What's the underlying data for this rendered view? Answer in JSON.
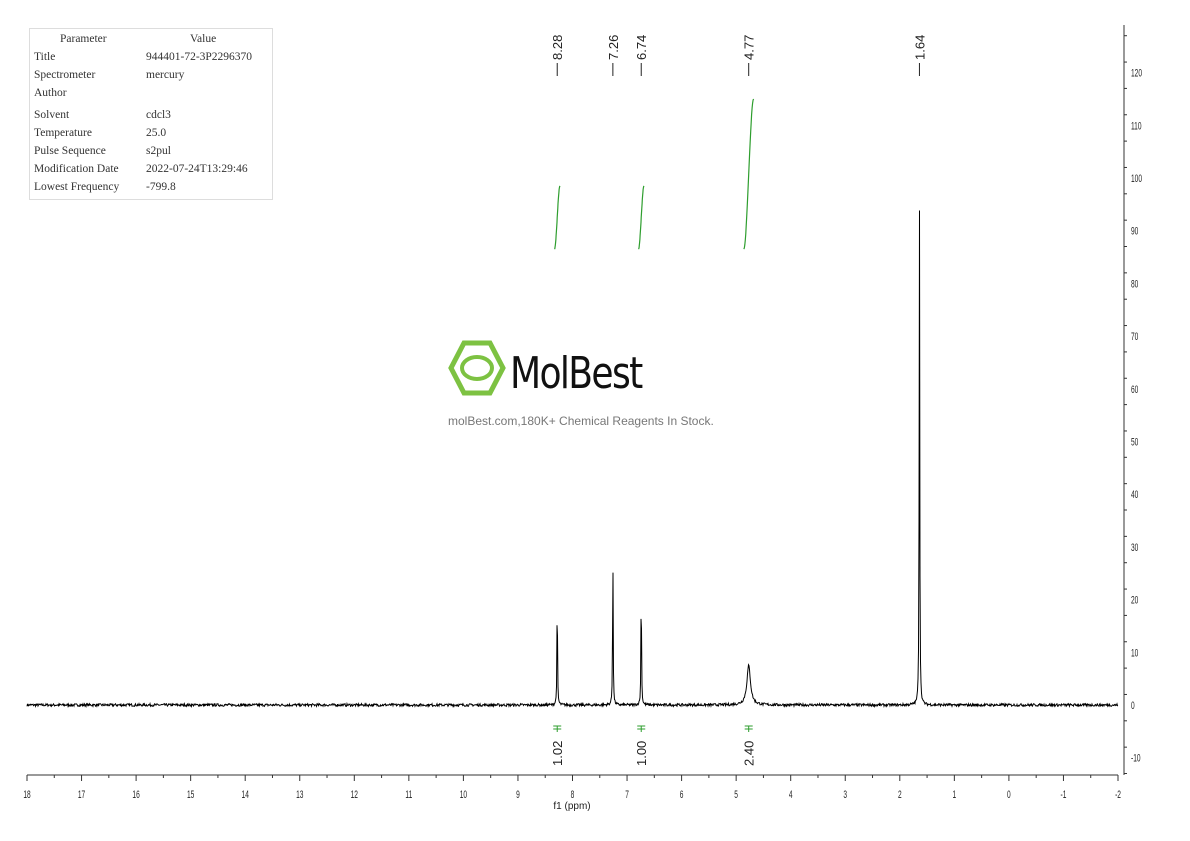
{
  "parameters": {
    "header": [
      "Parameter",
      "Value"
    ],
    "rows": [
      [
        "Title",
        "944401-72-3P2296370"
      ],
      [
        "Spectrometer",
        "mercury"
      ],
      [
        "Author",
        ""
      ],
      [
        "Solvent",
        "cdcl3"
      ],
      [
        "Temperature",
        "25.0"
      ],
      [
        "Pulse Sequence",
        "s2pul"
      ],
      [
        "Modification Date",
        "2022-07-24T13:29:46"
      ],
      [
        "Lowest Frequency",
        "-799.8"
      ]
    ]
  },
  "watermark": {
    "name": "MolBest",
    "tagline": "molBest.com,180K+ Chemical Reagents In Stock.",
    "color": "#7dc242"
  },
  "chart_data": {
    "type": "line",
    "xlabel": "f1 (ppm)",
    "xlim": [
      18,
      -2
    ],
    "xticks": [
      18,
      17,
      16,
      15,
      14,
      13,
      12,
      11,
      10,
      9,
      8,
      7,
      6,
      5,
      4,
      3,
      2,
      1,
      0,
      -1,
      -2
    ],
    "ylim": [
      -13,
      128
    ],
    "yticks": [
      120,
      110,
      100,
      90,
      80,
      70,
      60,
      50,
      40,
      30,
      20,
      10,
      0,
      -10
    ],
    "peaks": [
      {
        "ppm": 8.28,
        "height": 22,
        "label": "8.28"
      },
      {
        "ppm": 7.26,
        "height": 29.5,
        "label": "7.26"
      },
      {
        "ppm": 6.74,
        "height": 24.5,
        "label": "6.74"
      },
      {
        "ppm": 4.77,
        "height": 7.5,
        "label": "4.77",
        "broad": true
      },
      {
        "ppm": 1.64,
        "height": 97.3,
        "label": "1.64"
      }
    ],
    "integrals": [
      {
        "from": 8.33,
        "to": 8.23,
        "value": "1.02",
        "start": 86.5,
        "end": 98.5
      },
      {
        "from": 6.79,
        "to": 6.69,
        "value": "1.00",
        "start": 86.5,
        "end": 98.5
      },
      {
        "from": 4.86,
        "to": 4.68,
        "value": "2.40",
        "start": 86.5,
        "end": 115
      }
    ],
    "line_color": "#000000",
    "integral_color": "#2e9e2e",
    "grid": false
  }
}
